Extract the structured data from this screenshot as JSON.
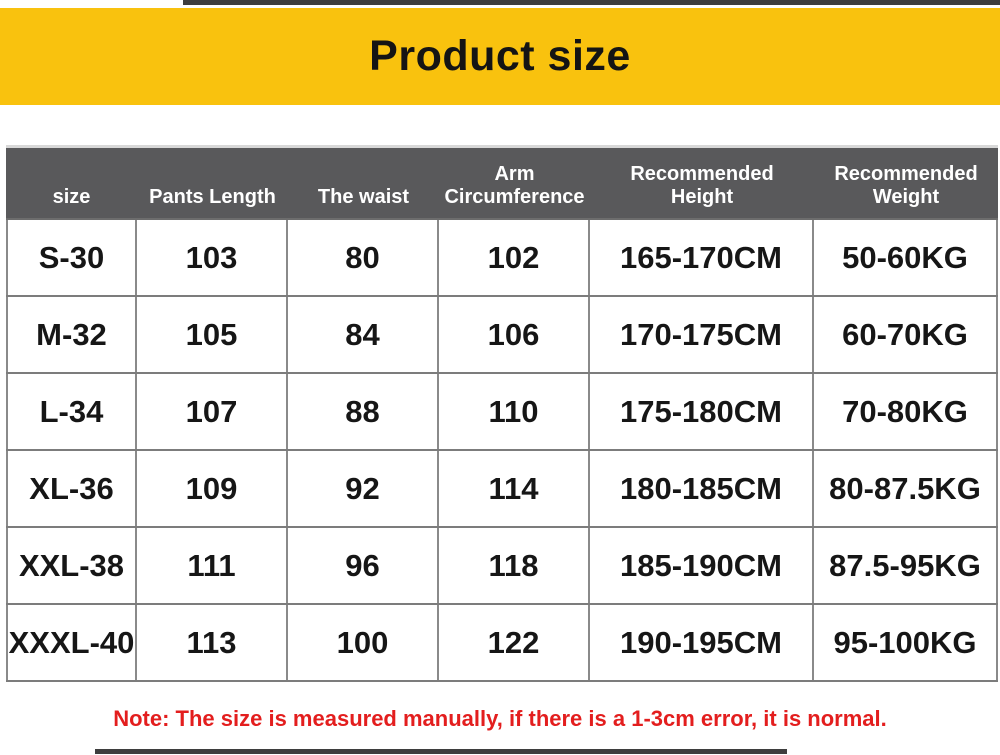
{
  "banner": {
    "title": "Product size",
    "bg_color": "#F9C20E"
  },
  "table": {
    "header_bg": "#59595B",
    "headers": [
      "size",
      "Pants Length",
      "The waist",
      "Arm\nCircumference",
      "Recommended\nHeight",
      "Recommended\nWeight"
    ],
    "rows": [
      {
        "size": "S-30",
        "pants_length": "103",
        "waist": "80",
        "arm": "102",
        "height": "165-170CM",
        "weight": "50-60KG"
      },
      {
        "size": "M-32",
        "pants_length": "105",
        "waist": "84",
        "arm": "106",
        "height": "170-175CM",
        "weight": "60-70KG"
      },
      {
        "size": "L-34",
        "pants_length": "107",
        "waist": "88",
        "arm": "110",
        "height": "175-180CM",
        "weight": "70-80KG"
      },
      {
        "size": "XL-36",
        "pants_length": "109",
        "waist": "92",
        "arm": "114",
        "height": "180-185CM",
        "weight": "80-87.5KG"
      },
      {
        "size": "XXL-38",
        "pants_length": "111",
        "waist": "96",
        "arm": "118",
        "height": "185-190CM",
        "weight": "87.5-95KG"
      },
      {
        "size": "XXXL-40",
        "pants_length": "113",
        "waist": "100",
        "arm": "122",
        "height": "190-195CM",
        "weight": "95-100KG"
      }
    ]
  },
  "note": {
    "text": "Note: The size is measured manually, if there is a 1-3cm error, it is normal.",
    "color": "#E31E1E"
  }
}
